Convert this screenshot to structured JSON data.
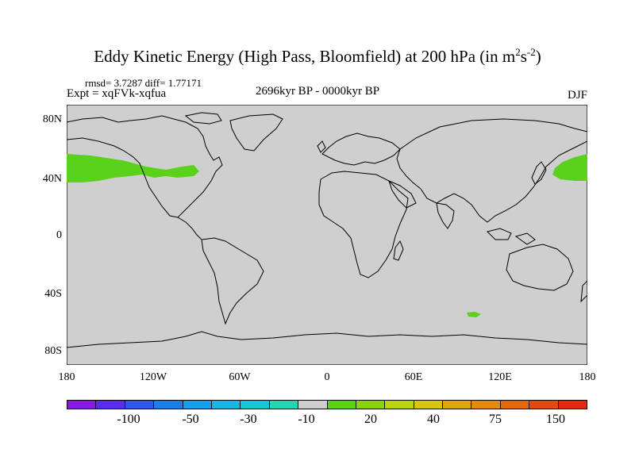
{
  "title": {
    "main": "Eddy Kinetic Energy (High Pass, Bloomfield) at 200 hPa (in m",
    "sup1": "2",
    "mid": "s",
    "sup2": "-2",
    "end": ")"
  },
  "stats": "rmsd= 3.7287 diff= 1.77171",
  "expt": "Expt = xqFVk-xqfua",
  "period": "2696kyr BP - 0000kyr BP",
  "season": "DJF",
  "y_axis": [
    "80N",
    "40N",
    "0",
    "40S",
    "80S"
  ],
  "x_axis": [
    "180",
    "120W",
    "60W",
    "0",
    "60E",
    "120E",
    "180"
  ],
  "colorbar": {
    "colors": [
      "#8a1ae0",
      "#5a2de6",
      "#2d5ae0",
      "#1f7ee0",
      "#1a9ee6",
      "#1cb4e4",
      "#1ac4d4",
      "#2ad2b4",
      "#cfcfcf",
      "#5ad21c",
      "#8ad214",
      "#bad414",
      "#d8c414",
      "#e0a414",
      "#e08a14",
      "#e06a14",
      "#e04a14",
      "#e02a10"
    ],
    "labels": [
      "-100",
      "-50",
      "-30",
      "-10",
      "20",
      "40",
      "75",
      "150"
    ]
  },
  "map": {
    "ocean_color": "#cfcfcf",
    "anomaly_color": "#5ad21c",
    "coast_color": "#000000"
  }
}
